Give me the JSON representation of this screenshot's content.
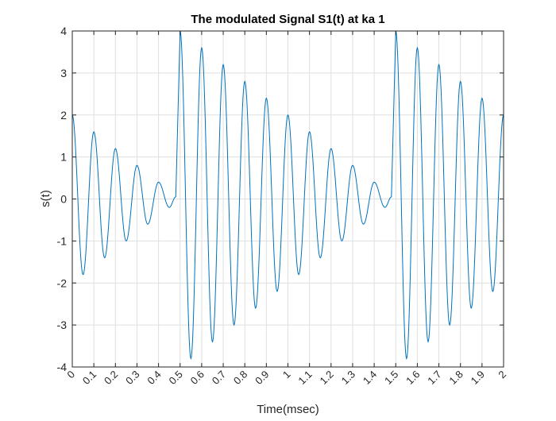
{
  "chart_data": {
    "type": "line",
    "title": "The modulated Signal S1(t) at ka 1",
    "xlabel": "Time(msec)",
    "ylabel": "s(t)",
    "xlim": [
      0,
      2
    ],
    "ylim": [
      -4,
      4
    ],
    "x_ticks": [
      "0",
      "0.1",
      "0.2",
      "0.3",
      "0.4",
      "0.5",
      "0.6",
      "0.7",
      "0.8",
      "0.9",
      "1",
      "1.1",
      "1.2",
      "1.3",
      "1.4",
      "1.5",
      "1.6",
      "1.7",
      "1.8",
      "1.9",
      "2"
    ],
    "y_ticks": [
      "-4",
      "-3",
      "-2",
      "-1",
      "0",
      "1",
      "2",
      "3",
      "4"
    ],
    "grid": true,
    "series": [
      {
        "color": "#0072BD",
        "x": [
          0,
          0.05,
          0.1,
          0.15,
          0.2,
          0.25,
          0.3,
          0.35,
          0.4,
          0.45,
          0.48,
          0.5,
          0.55,
          0.6,
          0.65,
          0.7,
          0.75,
          0.8,
          0.85,
          0.9,
          0.95,
          1.0,
          1.05,
          1.1,
          1.15,
          1.2,
          1.25,
          1.3,
          1.35,
          1.4,
          1.45,
          1.48,
          1.5,
          1.55,
          1.6,
          1.65,
          1.7,
          1.75,
          1.8,
          1.85,
          1.9,
          1.95,
          2.0
        ],
        "y": [
          2,
          -1.8,
          1.6,
          -1.4,
          1.2,
          -1.0,
          0.8,
          -0.6,
          0.4,
          -0.2,
          0.05,
          4,
          -3.8,
          3.6,
          -3.4,
          3.2,
          -3.0,
          2.8,
          -2.6,
          2.4,
          -2.2,
          2.0,
          -1.8,
          1.6,
          -1.4,
          1.2,
          -1.0,
          0.8,
          -0.6,
          0.4,
          -0.2,
          0.05,
          4,
          -3.8,
          3.6,
          -3.4,
          3.2,
          -3.0,
          2.8,
          -2.6,
          2.4,
          -2.2,
          2.0
        ]
      }
    ]
  }
}
